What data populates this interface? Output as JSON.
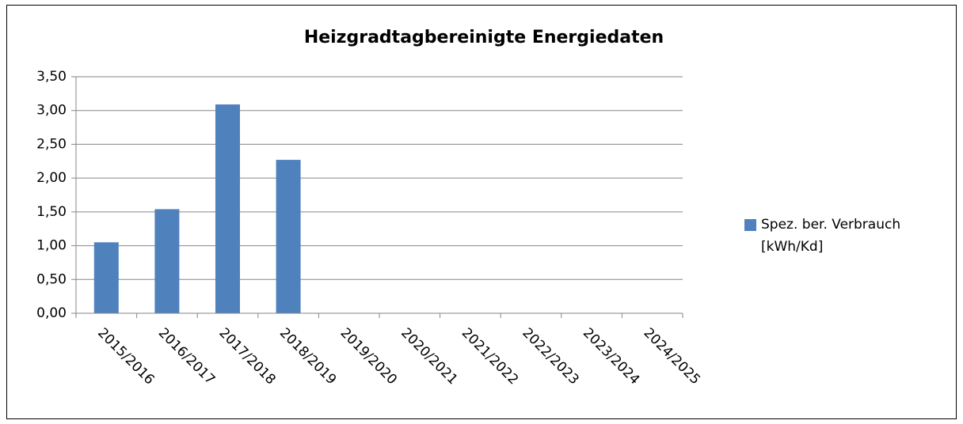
{
  "chart_data": {
    "type": "bar",
    "title": "Heizgradtagbereinigte Energiedaten",
    "categories": [
      "2015/2016",
      "2016/2017",
      "2017/2018",
      "2018/2019",
      "2019/2020",
      "2020/2021",
      "2021/2022",
      "2022/2023",
      "2023/2024",
      "2024/2025"
    ],
    "series": [
      {
        "name": "Spez. ber. Verbrauch [kWh/Kd]",
        "color": "#4f81bd",
        "values": [
          1.05,
          1.54,
          3.09,
          2.27,
          null,
          null,
          null,
          null,
          null,
          null
        ]
      }
    ],
    "ylim": [
      0,
      3.5
    ],
    "yticks": [
      {
        "value": 0,
        "label": "0,00"
      },
      {
        "value": 0.5,
        "label": "0,50"
      },
      {
        "value": 1,
        "label": "1,00"
      },
      {
        "value": 1.5,
        "label": "1,50"
      },
      {
        "value": 2,
        "label": "2,00"
      },
      {
        "value": 2.5,
        "label": "2,50"
      },
      {
        "value": 3,
        "label": "3,00"
      },
      {
        "value": 3.5,
        "label": "3,50"
      }
    ],
    "grid": true,
    "legend": "right"
  }
}
